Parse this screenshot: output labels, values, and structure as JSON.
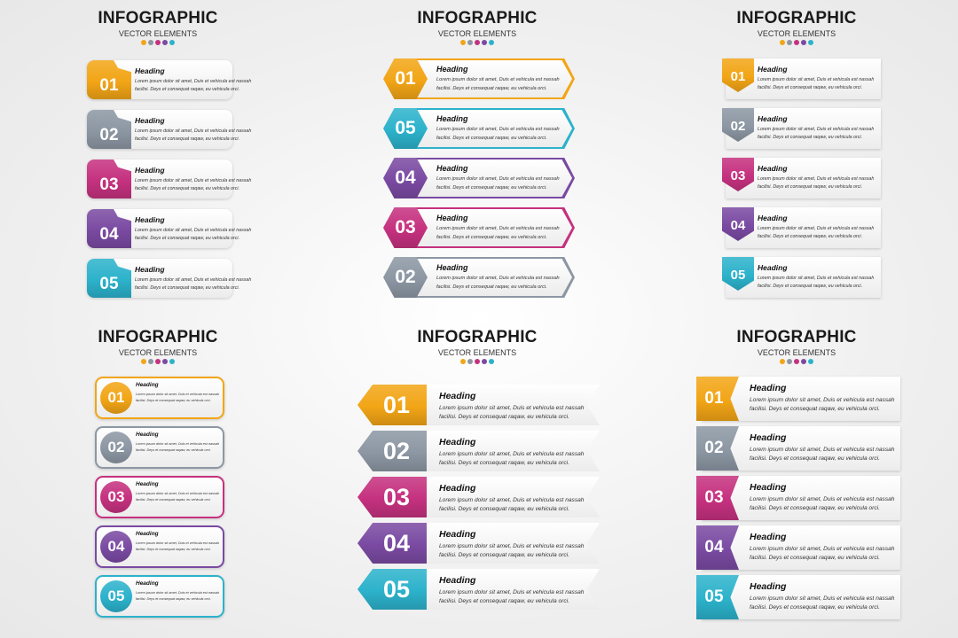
{
  "panels": [
    {
      "title": "INFOGRAPHIC",
      "subtitle": "VECTOR ELEMENTS",
      "items": [
        {
          "number": "01",
          "color": "#f2a516",
          "heading": "Heading",
          "lines": [
            "Lorem ipsum dolor sit amet, Duis et vehicula est nassah",
            "facilisi. Deys et consequat raqaw, eu vehicula orci."
          ]
        },
        {
          "number": "02",
          "color": "#8c97a3",
          "heading": "Heading",
          "lines": [
            "Lorem ipsum dolor sit amet, Duis et vehicula est nassah",
            "facilisi. Deys et consequat raqaw, eu vehicula orci."
          ]
        },
        {
          "number": "03",
          "color": "#c5317f",
          "heading": "Heading",
          "lines": [
            "Lorem ipsum dolor sit amet, Duis et vehicula est nassah",
            "facilisi. Deys et consequat raqaw, eu vehicula orci."
          ]
        },
        {
          "number": "04",
          "color": "#7a4aa2",
          "heading": "Heading",
          "lines": [
            "Lorem ipsum dolor sit amet, Duis et vehicula est nassah",
            "facilisi. Deys et consequat raqaw, eu vehicula orci."
          ]
        },
        {
          "number": "05",
          "color": "#2cb2cb",
          "heading": "Heading",
          "lines": [
            "Lorem ipsum dolor sit amet, Duis et vehicula est nassah",
            "facilisi. Deys et consequat raqaw, eu vehicula orci."
          ]
        }
      ]
    },
    {
      "title": "INFOGRAPHIC",
      "subtitle": "VECTOR ELEMENTS",
      "items": [
        {
          "number": "01",
          "color": "#f2a516",
          "heading": "Heading",
          "lines": [
            "Lorem ipsum dolor sit amet, Duis et vehicula est nassah",
            "facilisi. Deys et consequat raqaw, eu vehicula orci."
          ]
        },
        {
          "number": "05",
          "color": "#2cb2cb",
          "heading": "Heading",
          "lines": [
            "Lorem ipsum dolor sit amet, Duis et vehicula est nassah",
            "facilisi. Deys et consequat raqaw, eu vehicula orci."
          ]
        },
        {
          "number": "04",
          "color": "#7a4aa2",
          "heading": "Heading",
          "lines": [
            "Lorem ipsum dolor sit amet, Duis et vehicula est nassah",
            "facilisi. Deys et consequat raqaw, eu vehicula orci."
          ]
        },
        {
          "number": "03",
          "color": "#c5317f",
          "heading": "Heading",
          "lines": [
            "Lorem ipsum dolor sit amet, Duis et vehicula est nassah",
            "facilisi. Deys et consequat raqaw, eu vehicula orci."
          ]
        },
        {
          "number": "02",
          "color": "#8c97a3",
          "heading": "Heading",
          "lines": [
            "Lorem ipsum dolor sit amet, Duis et vehicula est nassah",
            "facilisi. Deys et consequat raqaw, eu vehicula orci."
          ]
        }
      ]
    },
    {
      "title": "INFOGRAPHIC",
      "subtitle": "VECTOR ELEMENTS",
      "items": [
        {
          "number": "01",
          "color": "#f2a516",
          "heading": "Heading",
          "lines": [
            "Lorem ipsum dolor sit amet, Duis et vehicula est nassah",
            "facilisi. Deys et consequat raqaw, eu vehicula orci."
          ]
        },
        {
          "number": "02",
          "color": "#8c97a3",
          "heading": "Heading",
          "lines": [
            "Lorem ipsum dolor sit amet, Duis et vehicula est nassah",
            "facilisi. Deys et consequat raqaw, eu vehicula orci."
          ]
        },
        {
          "number": "03",
          "color": "#c5317f",
          "heading": "Heading",
          "lines": [
            "Lorem ipsum dolor sit amet, Duis et vehicula est nassah",
            "facilisi. Deys et consequat raqaw, eu vehicula orci."
          ]
        },
        {
          "number": "04",
          "color": "#7a4aa2",
          "heading": "Heading",
          "lines": [
            "Lorem ipsum dolor sit amet, Duis et vehicula est nassah",
            "facilisi. Deys et consequat raqaw, eu vehicula orci."
          ]
        },
        {
          "number": "05",
          "color": "#2cb2cb",
          "heading": "Heading",
          "lines": [
            "Lorem ipsum dolor sit amet, Duis et vehicula est nassah",
            "facilisi. Deys et consequat raqaw, eu vehicula orci."
          ]
        }
      ]
    },
    {
      "title": "INFOGRAPHIC",
      "subtitle": "VECTOR ELEMENTS",
      "items": [
        {
          "number": "01",
          "color": "#f2a516",
          "heading": "Heading",
          "lines": [
            "Lorem ipsum dolor sit amet, Duis et vehicula est nassah",
            "facilisi. Deys et consequat raqaw, eu vehicula orci."
          ]
        },
        {
          "number": "02",
          "color": "#8c97a3",
          "heading": "Heading",
          "lines": [
            "Lorem ipsum dolor sit amet, Duis et vehicula est nassah",
            "facilisi. Deys et consequat raqaw, eu vehicula orci."
          ]
        },
        {
          "number": "03",
          "color": "#c5317f",
          "heading": "Heading",
          "lines": [
            "Lorem ipsum dolor sit amet, Duis et vehicula est nassah",
            "facilisi. Deys et consequat raqaw, eu vehicula orci."
          ]
        },
        {
          "number": "04",
          "color": "#7a4aa2",
          "heading": "Heading",
          "lines": [
            "Lorem ipsum dolor sit amet, Duis et vehicula est nassah",
            "facilisi. Deys et consequat raqaw, eu vehicula orci."
          ]
        },
        {
          "number": "05",
          "color": "#2cb2cb",
          "heading": "Heading",
          "lines": [
            "Lorem ipsum dolor sit amet, Duis et vehicula est nassah",
            "facilisi. Deys et consequat raqaw, eu vehicula orci."
          ]
        }
      ]
    },
    {
      "title": "INFOGRAPHIC",
      "subtitle": "VECTOR ELEMENTS",
      "items": [
        {
          "number": "01",
          "color": "#f2a516",
          "heading": "Heading",
          "lines": [
            "Lorem ipsum dolor sit amet, Duis et vehicula est nassah",
            "facilisi. Deys et consequat raqaw, eu vehicula orci."
          ]
        },
        {
          "number": "02",
          "color": "#8c97a3",
          "heading": "Heading",
          "lines": [
            "Lorem ipsum dolor sit amet, Duis et vehicula est nassah",
            "facilisi. Deys et consequat raqaw, eu vehicula orci."
          ]
        },
        {
          "number": "03",
          "color": "#c5317f",
          "heading": "Heading",
          "lines": [
            "Lorem ipsum dolor sit amet, Duis et vehicula est nassah",
            "facilisi. Deys et consequat raqaw, eu vehicula orci."
          ]
        },
        {
          "number": "04",
          "color": "#7a4aa2",
          "heading": "Heading",
          "lines": [
            "Lorem ipsum dolor sit amet, Duis et vehicula est nassah",
            "facilisi. Deys et consequat raqaw, eu vehicula orci."
          ]
        },
        {
          "number": "05",
          "color": "#2cb2cb",
          "heading": "Heading",
          "lines": [
            "Lorem ipsum dolor sit amet, Duis et vehicula est nassah",
            "facilisi. Deys et consequat raqaw, eu vehicula orci."
          ]
        }
      ]
    },
    {
      "title": "INFOGRAPHIC",
      "subtitle": "VECTOR ELEMENTS",
      "items": [
        {
          "number": "01",
          "color": "#f2a516",
          "heading": "Heading",
          "lines": [
            "Lorem ipsum dolor sit amet, Duis et vehicula est nassah",
            "facilisi. Deys et consequat raqaw, eu vehicula orci."
          ]
        },
        {
          "number": "02",
          "color": "#8c97a3",
          "heading": "Heading",
          "lines": [
            "Lorem ipsum dolor sit amet, Duis et vehicula est nassah",
            "facilisi. Deys et consequat raqaw, eu vehicula orci."
          ]
        },
        {
          "number": "03",
          "color": "#c5317f",
          "heading": "Heading",
          "lines": [
            "Lorem ipsum dolor sit amet, Duis et vehicula est nassah",
            "facilisi. Deys et consequat raqaw, eu vehicula orci."
          ]
        },
        {
          "number": "04",
          "color": "#7a4aa2",
          "heading": "Heading",
          "lines": [
            "Lorem ipsum dolor sit amet, Duis et vehicula est nassah",
            "facilisi. Deys et consequat raqaw, eu vehicula orci."
          ]
        },
        {
          "number": "05",
          "color": "#2cb2cb",
          "heading": "Heading",
          "lines": [
            "Lorem ipsum dolor sit amet, Duis et vehicula est nassah",
            "facilisi. Deys et consequat raqaw, eu vehicula orci."
          ]
        }
      ]
    }
  ]
}
